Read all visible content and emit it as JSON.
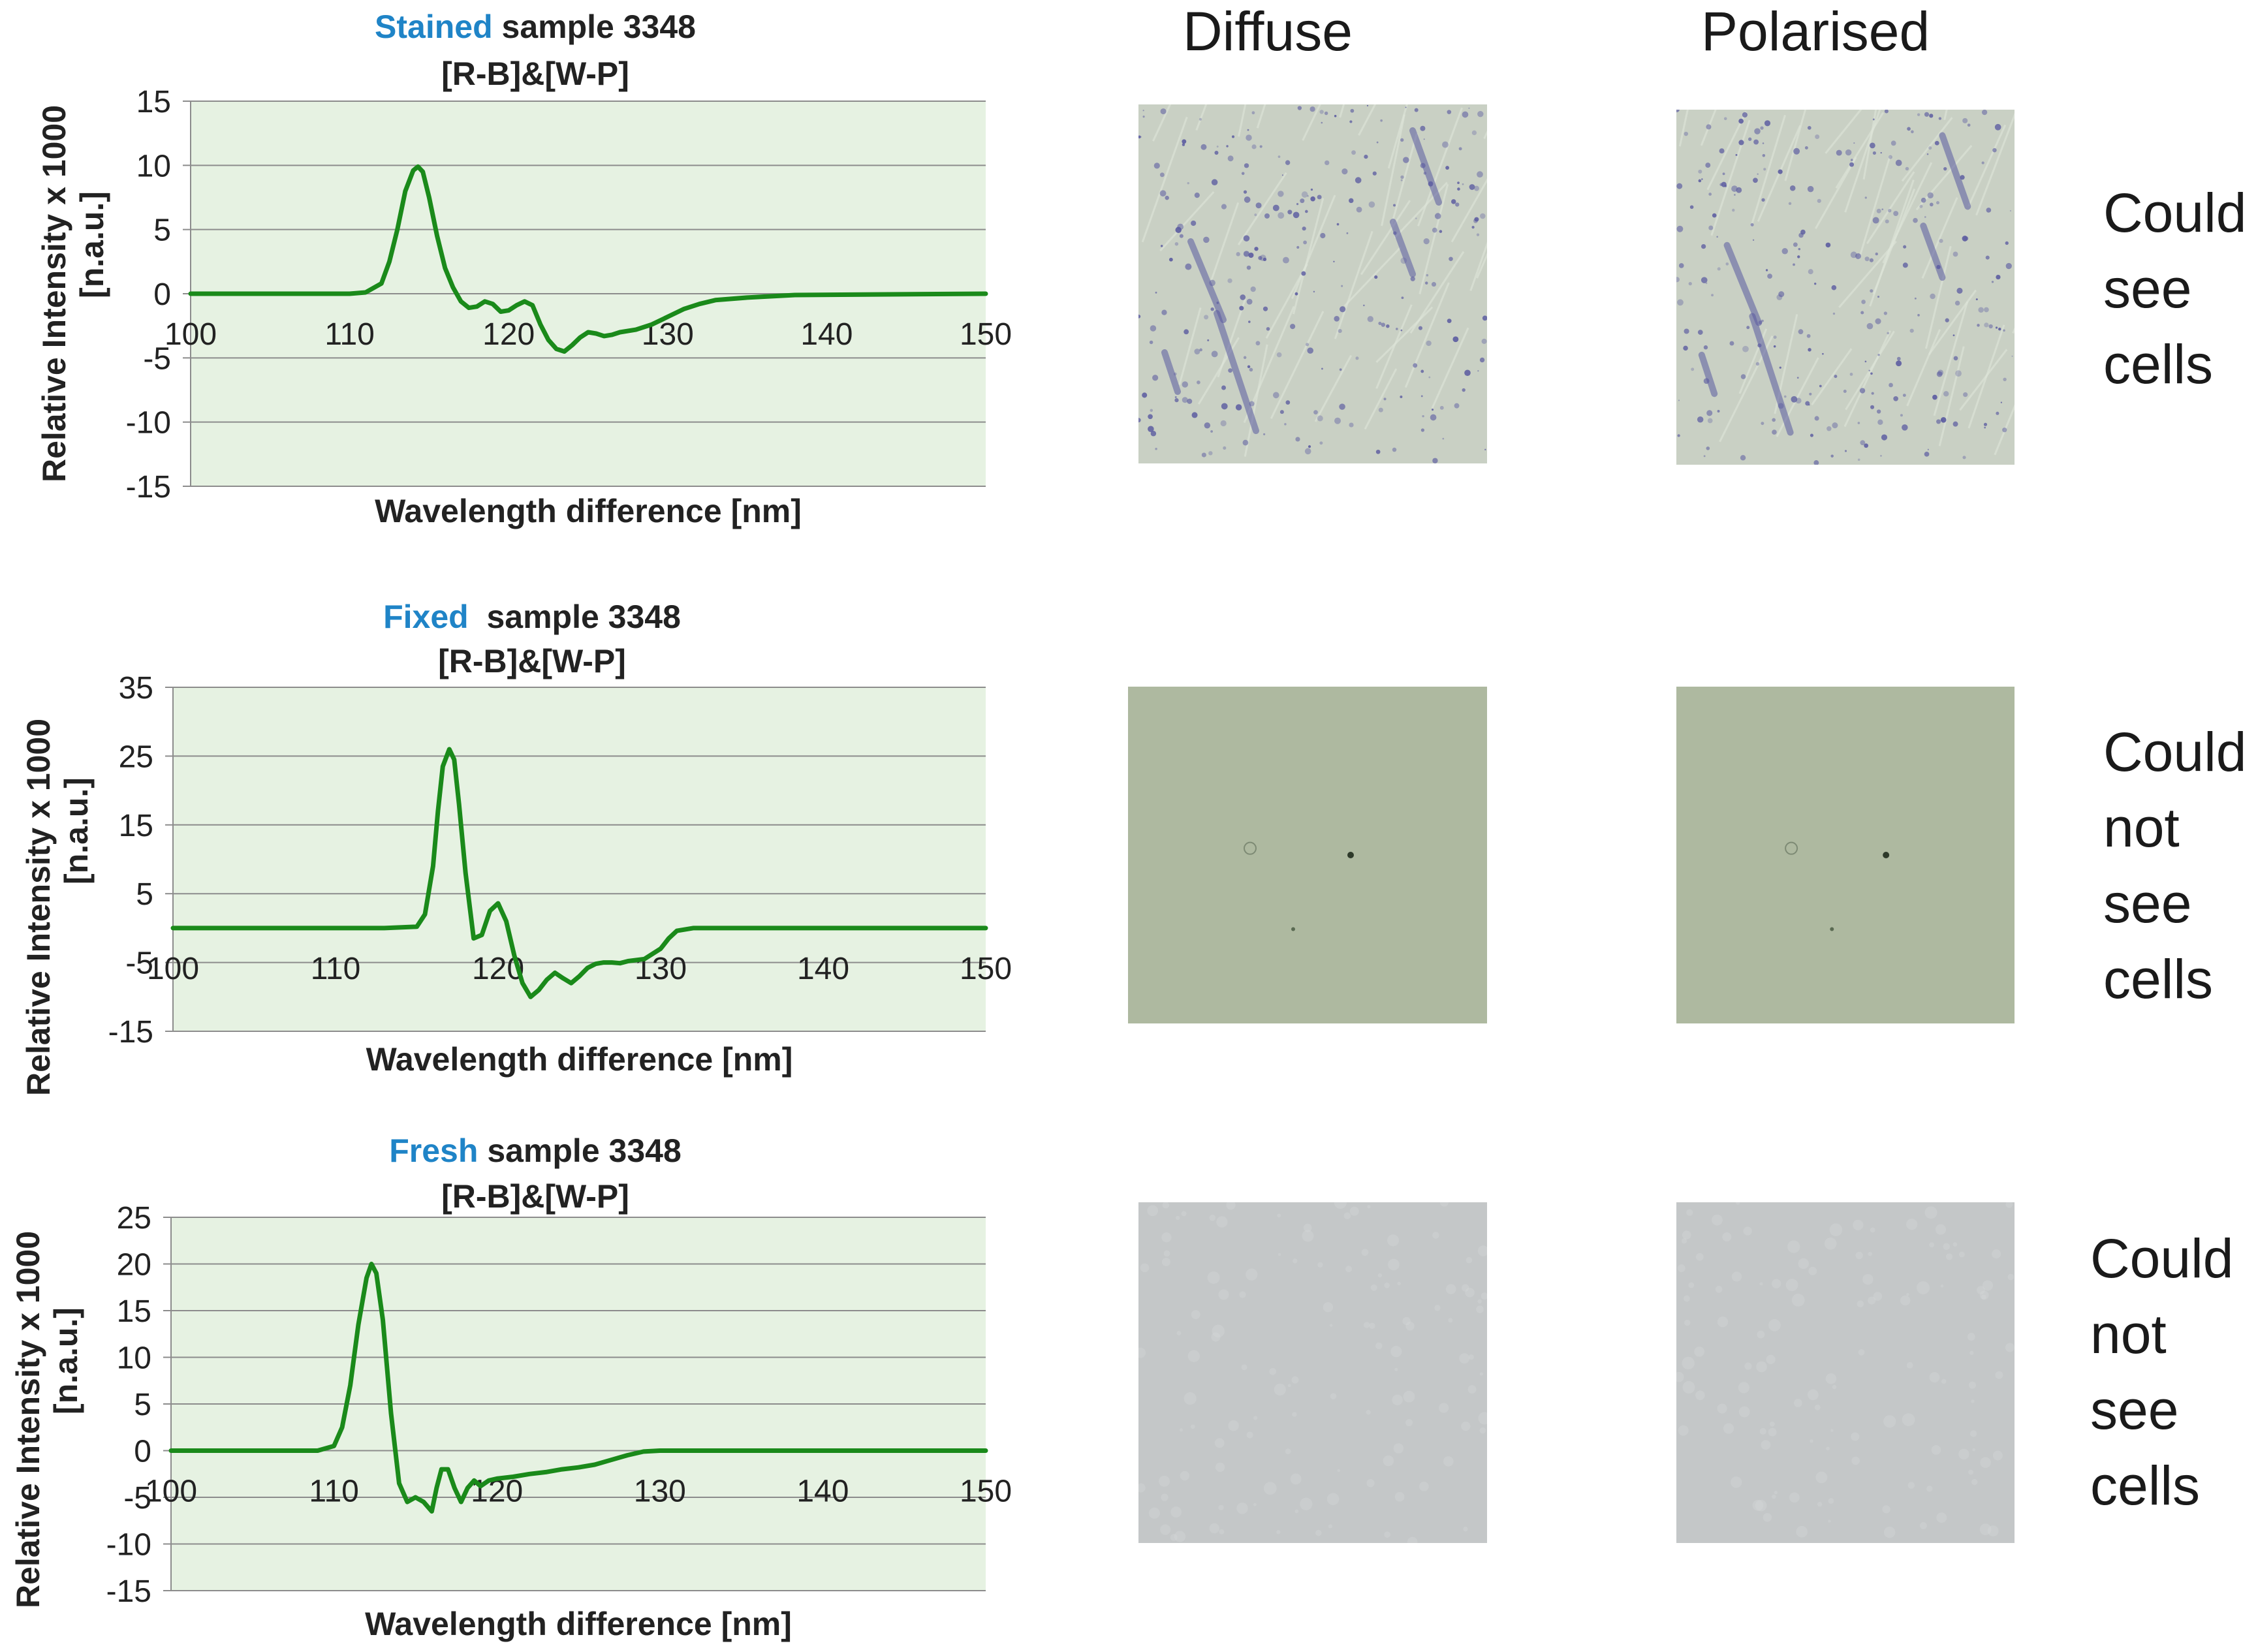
{
  "columns": {
    "diffuse": "Diffuse",
    "polarised": "Polarised"
  },
  "notes": [
    [
      "Could",
      "see",
      "cells"
    ],
    [
      "Could",
      "not",
      "see",
      "cells"
    ],
    [
      "Could",
      "not",
      "see",
      "cells"
    ]
  ],
  "colors": {
    "line": "#1a8a1a",
    "plot_bg": "#e6f2e2",
    "accent_title": "#1f84c7",
    "stained_photo_bg": "#c9d0c4",
    "stained_photo_marks": "#5a5aa0",
    "fixed_photo_bg": "#aeb9a0",
    "fresh_photo_bg": "#c4c7c8"
  },
  "chart_data": [
    {
      "type": "line",
      "title_accent": "Stained",
      "title_rest": " sample 3348",
      "subtitle": "[R-B]&[W-P]",
      "xlabel": "Wavelength difference [nm]",
      "ylabel": [
        "Relative Intensity x 1000",
        "[n.a.u.]"
      ],
      "xlim": [
        100,
        150
      ],
      "ylim": [
        -15,
        15
      ],
      "xticks": [
        "100",
        "110",
        "120",
        "130",
        "140",
        "150"
      ],
      "yticks": [
        "15",
        "10",
        "5",
        "0",
        "-5",
        "-10",
        "-15"
      ],
      "grid": true,
      "series": [
        {
          "x": [
            100,
            108,
            110,
            111,
            112,
            112.5,
            113,
            113.5,
            114,
            114.3,
            114.6,
            115,
            115.5,
            116,
            116.5,
            117,
            117.5,
            118,
            118.5,
            119,
            119.5,
            120,
            120.5,
            121,
            121.5,
            122,
            122.5,
            123,
            123.5,
            124,
            124.5,
            125,
            125.5,
            126,
            126.5,
            127,
            128,
            129,
            130,
            131,
            132,
            133,
            135,
            138,
            150
          ],
          "y": [
            0,
            0,
            0,
            0.1,
            0.8,
            2.5,
            5.0,
            8.0,
            9.6,
            9.9,
            9.5,
            7.5,
            4.5,
            2.0,
            0.5,
            -0.6,
            -1.1,
            -1.0,
            -0.6,
            -0.8,
            -1.4,
            -1.3,
            -0.9,
            -0.6,
            -0.9,
            -2.4,
            -3.6,
            -4.3,
            -4.5,
            -4.0,
            -3.4,
            -3.0,
            -3.1,
            -3.3,
            -3.2,
            -3.0,
            -2.8,
            -2.4,
            -1.8,
            -1.2,
            -0.8,
            -0.5,
            -0.3,
            -0.1,
            0
          ]
        }
      ]
    },
    {
      "type": "line",
      "title_accent": "Fixed",
      "title_rest": "  sample 3348",
      "subtitle": "[R-B]&[W-P]",
      "xlabel": "Wavelength difference [nm]",
      "ylabel": [
        "Relative Intensity x 1000",
        "[n.a.u.]"
      ],
      "xlim": [
        100,
        150
      ],
      "ylim": [
        -15,
        35
      ],
      "xticks": [
        "100",
        "110",
        "120",
        "130",
        "140",
        "150"
      ],
      "yticks": [
        "35",
        "25",
        "15",
        "5",
        "-5",
        "-15"
      ],
      "grid": true,
      "series": [
        {
          "x": [
            100,
            113,
            115,
            115.5,
            116,
            116.3,
            116.6,
            117,
            117.3,
            117.6,
            118,
            118.5,
            119,
            119.5,
            120,
            120.5,
            121,
            121.5,
            122,
            122.5,
            123,
            123.5,
            124,
            124.5,
            125,
            125.5,
            126,
            126.5,
            127,
            127.5,
            128,
            129,
            130,
            130.5,
            131,
            132,
            135,
            150
          ],
          "y": [
            0,
            0,
            0.2,
            2.0,
            9.0,
            17.0,
            23.5,
            26.0,
            24.5,
            18.0,
            8.0,
            -1.5,
            -1.0,
            2.5,
            3.6,
            1.0,
            -4.0,
            -8.0,
            -10.0,
            -9.0,
            -7.5,
            -6.5,
            -7.3,
            -8.0,
            -7.0,
            -5.8,
            -5.2,
            -5.0,
            -5.0,
            -5.1,
            -4.8,
            -4.5,
            -3.0,
            -1.5,
            -0.4,
            0,
            0,
            0
          ]
        }
      ]
    },
    {
      "type": "line",
      "title_accent": "Fresh",
      "title_rest": " sample 3348",
      "subtitle": "[R-B]&[W-P]",
      "xlabel": "Wavelength difference [nm]",
      "ylabel": [
        "Relative Intensity x 1000",
        "[n.a.u.]"
      ],
      "xlim": [
        100,
        150
      ],
      "ylim": [
        -15,
        25
      ],
      "xticks": [
        "100",
        "110",
        "120",
        "130",
        "140",
        "150"
      ],
      "yticks": [
        "25",
        "20",
        "15",
        "10",
        "5",
        "0",
        "-5",
        "-10",
        "-15"
      ],
      "grid": true,
      "series": [
        {
          "x": [
            100,
            109,
            110,
            110.5,
            111,
            111.5,
            112,
            112.3,
            112.6,
            113,
            113.5,
            114,
            114.5,
            115,
            115.5,
            116,
            116.3,
            116.6,
            117,
            117.4,
            117.8,
            118.2,
            118.6,
            119,
            119.5,
            120,
            121,
            122,
            123,
            124,
            125,
            126,
            127,
            128,
            129,
            130,
            150
          ],
          "y": [
            0,
            0,
            0.5,
            2.5,
            7.0,
            13.5,
            18.5,
            20.0,
            19.0,
            14.0,
            4.0,
            -3.5,
            -5.5,
            -5.0,
            -5.5,
            -6.5,
            -4.0,
            -2.0,
            -2.0,
            -4.0,
            -5.5,
            -4.0,
            -3.2,
            -3.8,
            -3.2,
            -3.0,
            -2.8,
            -2.5,
            -2.3,
            -2.0,
            -1.8,
            -1.5,
            -1.0,
            -0.5,
            -0.1,
            0,
            0
          ]
        }
      ]
    }
  ]
}
